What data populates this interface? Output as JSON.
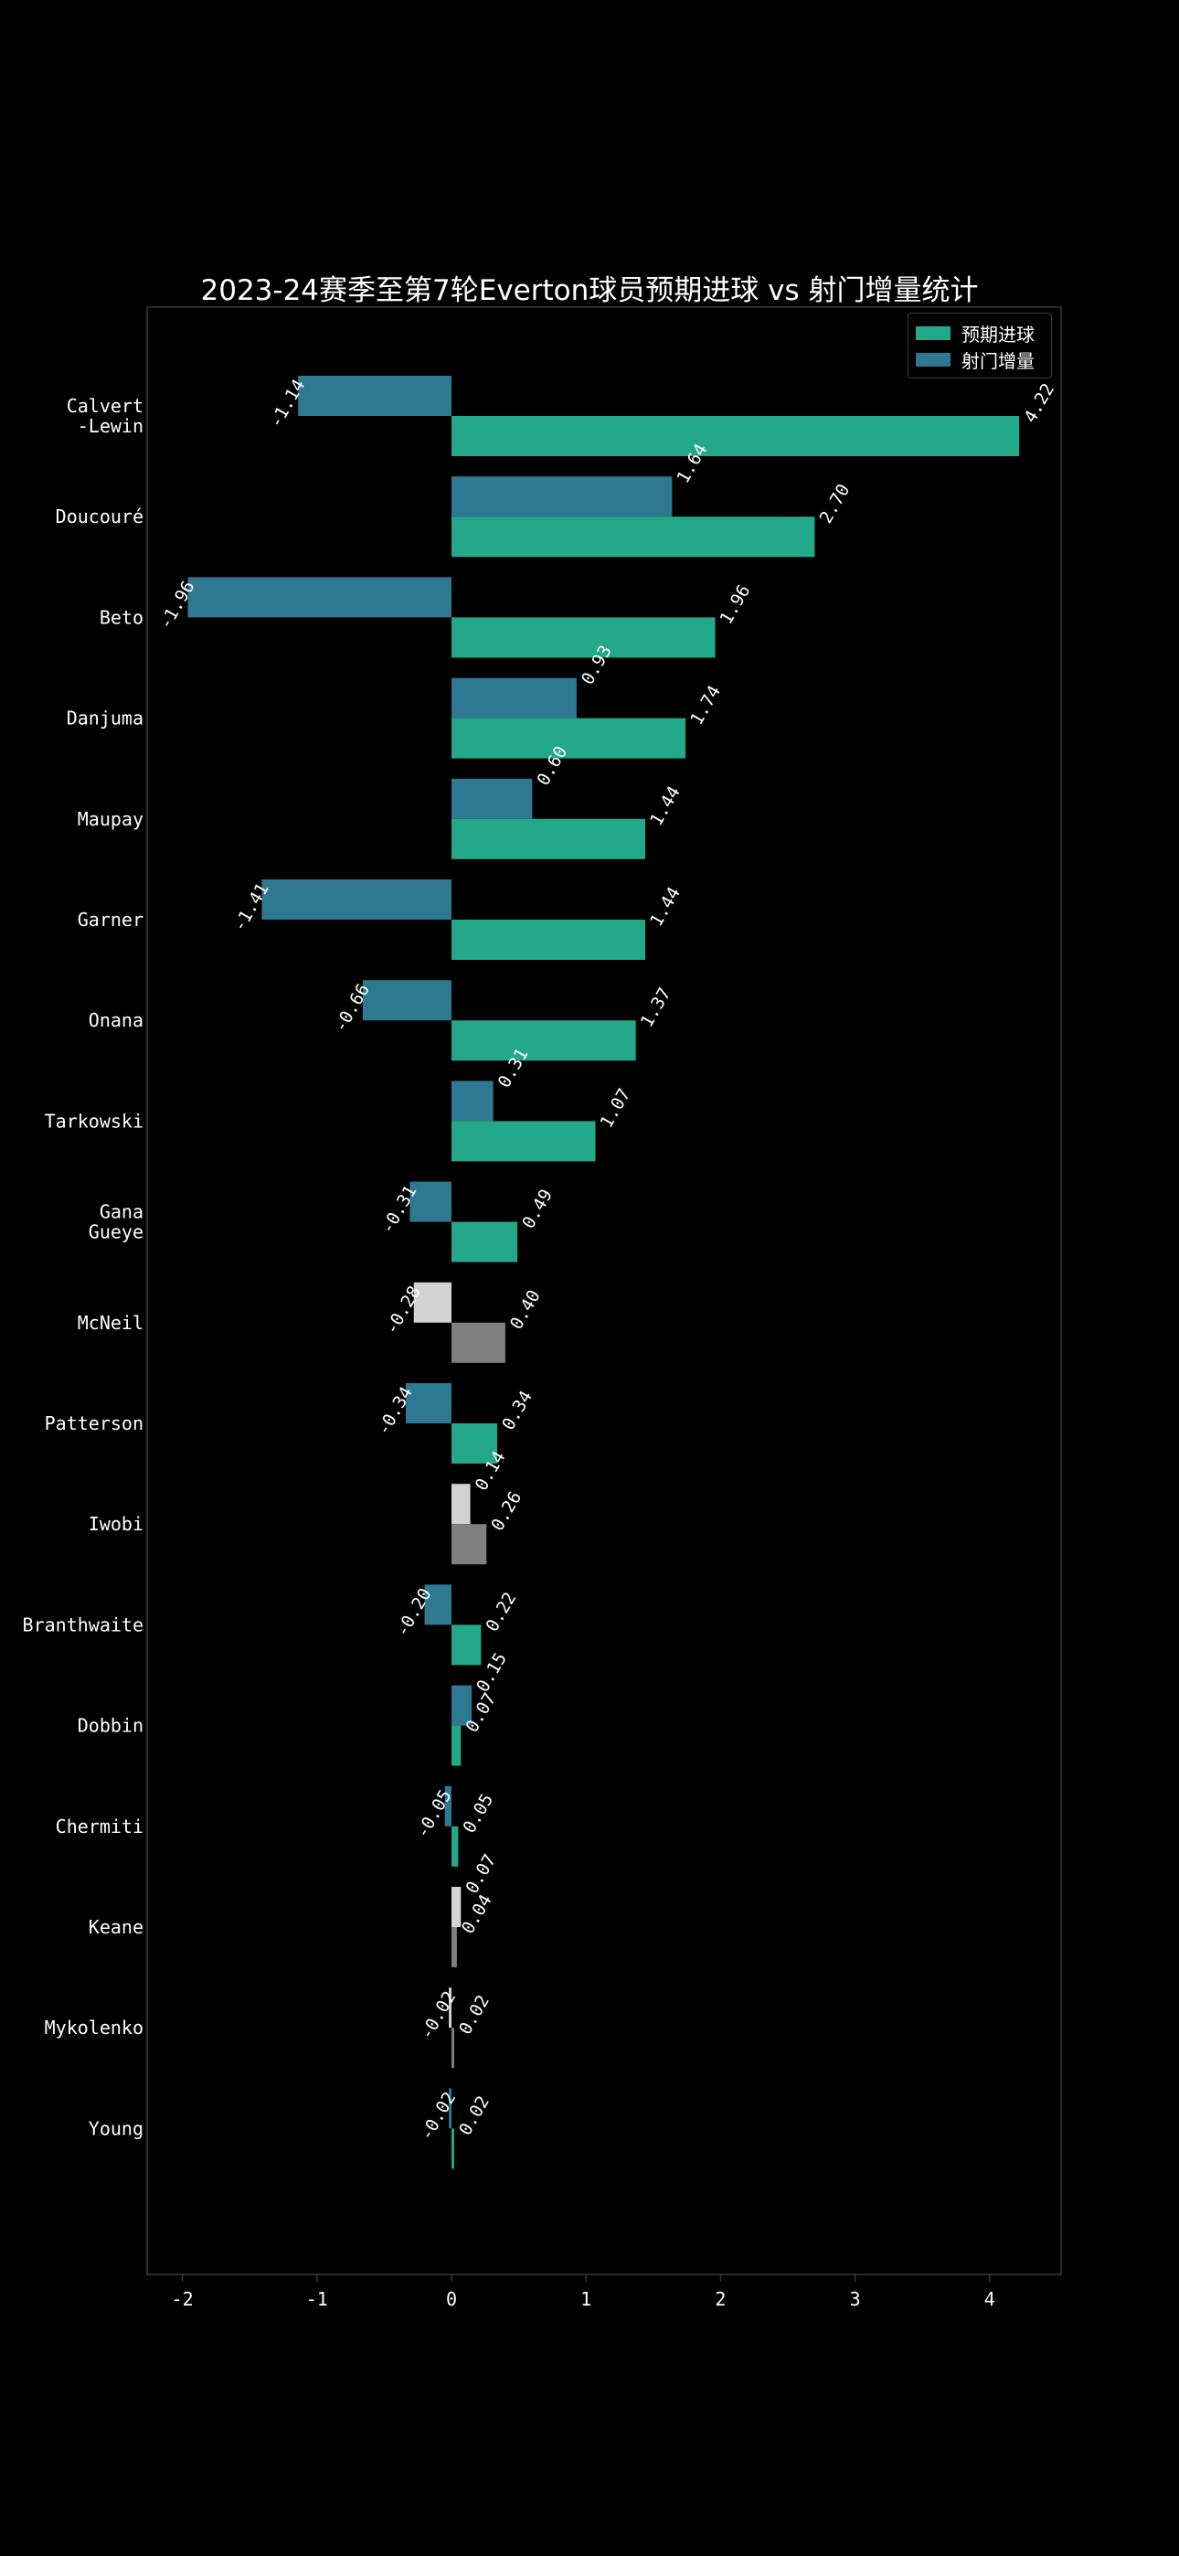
{
  "chart_data": {
    "type": "bar",
    "orientation": "horizontal",
    "title": "2023-24赛季至第7轮Everton球员预期进球 vs 射门增量统计",
    "categories": [
      "Calvert\n-Lewin",
      "Doucouré",
      "Beto",
      "Danjuma",
      "Maupay",
      "Garner",
      "Onana",
      "Tarkowski",
      "Gana\nGueye",
      "McNeil",
      "Patterson",
      "Iwobi",
      "Branthwaite",
      "Dobbin",
      "Chermiti",
      "Keane",
      "Mykolenko",
      "Young"
    ],
    "series": [
      {
        "name": "射门增量",
        "color": "#2e7891",
        "values": [
          -1.14,
          1.64,
          -1.96,
          0.93,
          0.6,
          -1.41,
          -0.66,
          0.31,
          -0.31,
          -0.28,
          -0.34,
          0.14,
          -0.2,
          0.15,
          -0.05,
          0.07,
          -0.02,
          -0.02
        ],
        "labels": [
          "-1.14",
          "1.64",
          "-1.96",
          "0.93",
          "0.60",
          "-1.41",
          "-0.66",
          "0.31",
          "-0.31",
          "-0.28",
          "-0.34",
          "0.14",
          "-0.20",
          "0.15",
          "-0.05",
          "0.07",
          "-0.02",
          "-0.02"
        ]
      },
      {
        "name": "预期进球",
        "color": "#23a98a",
        "values": [
          4.22,
          2.7,
          1.96,
          1.74,
          1.44,
          1.44,
          1.37,
          1.07,
          0.49,
          0.4,
          0.34,
          0.26,
          0.22,
          0.07,
          0.05,
          0.04,
          0.02,
          0.02
        ],
        "labels": [
          "4.22",
          "2.70",
          "1.96",
          "1.74",
          "1.44",
          "1.44",
          "1.37",
          "1.07",
          "0.49",
          "0.40",
          "0.34",
          "0.26",
          "0.22",
          "0.07",
          "0.05",
          "0.04",
          "0.02",
          "0.02"
        ]
      }
    ],
    "highlight_colors": {
      "delta": "#d3d3d3",
      "xg": "#808080"
    },
    "highlighted_players": [
      "McNeil",
      "Iwobi",
      "Keane",
      "Mykolenko"
    ],
    "xlim": [
      -2.2,
      4.5
    ],
    "xticks": [
      -2,
      -1,
      0,
      1,
      2,
      3,
      4
    ],
    "xtick_labels": [
      "-2",
      "-1",
      "0",
      "1",
      "2",
      "3",
      "4"
    ],
    "legend": {
      "position": "top-right",
      "entries": [
        "预期进球",
        "射门增量"
      ]
    }
  }
}
